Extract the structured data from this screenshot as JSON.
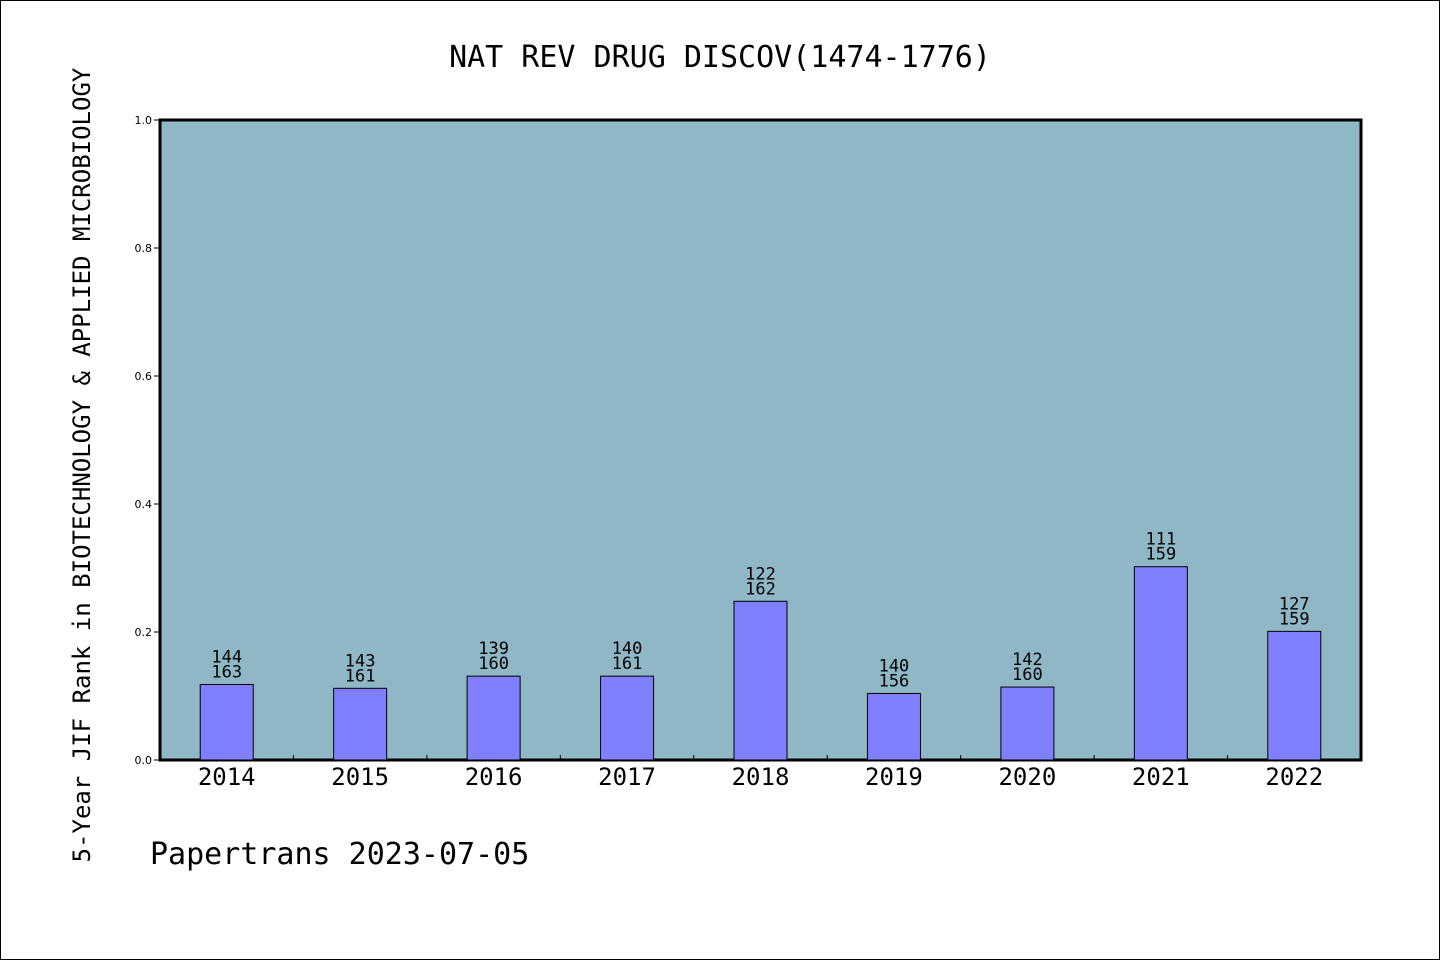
{
  "chart_data": {
    "type": "bar",
    "title": "NAT REV DRUG DISCOV(1474-1776)",
    "xlabel": "",
    "ylabel": "5-Year JIF Rank in BIOTECHNOLOGY & APPLIED MICROBIOLOGY",
    "categories": [
      "2014",
      "2015",
      "2016",
      "2017",
      "2018",
      "2019",
      "2020",
      "2021",
      "2022"
    ],
    "series": [
      {
        "values": [
          0.118,
          0.112,
          0.131,
          0.131,
          0.248,
          0.104,
          0.114,
          0.302,
          0.201
        ],
        "ranks": [
          144,
          143,
          139,
          140,
          122,
          140,
          142,
          111,
          127
        ],
        "totals": [
          163,
          161,
          160,
          161,
          162,
          156,
          160,
          159,
          159
        ]
      }
    ],
    "ylim": [
      0,
      1.0
    ],
    "yticks": [
      "0.0",
      "0.2",
      "0.4",
      "0.6",
      "0.8",
      "1.0"
    ],
    "grid": false,
    "footer": "Papertrans 2023-07-05"
  },
  "colors": {
    "plot_bg": "#8fb7c5",
    "bar_fill": "#8080ff",
    "axis": "#000000",
    "page_bg": "#ffffff"
  }
}
